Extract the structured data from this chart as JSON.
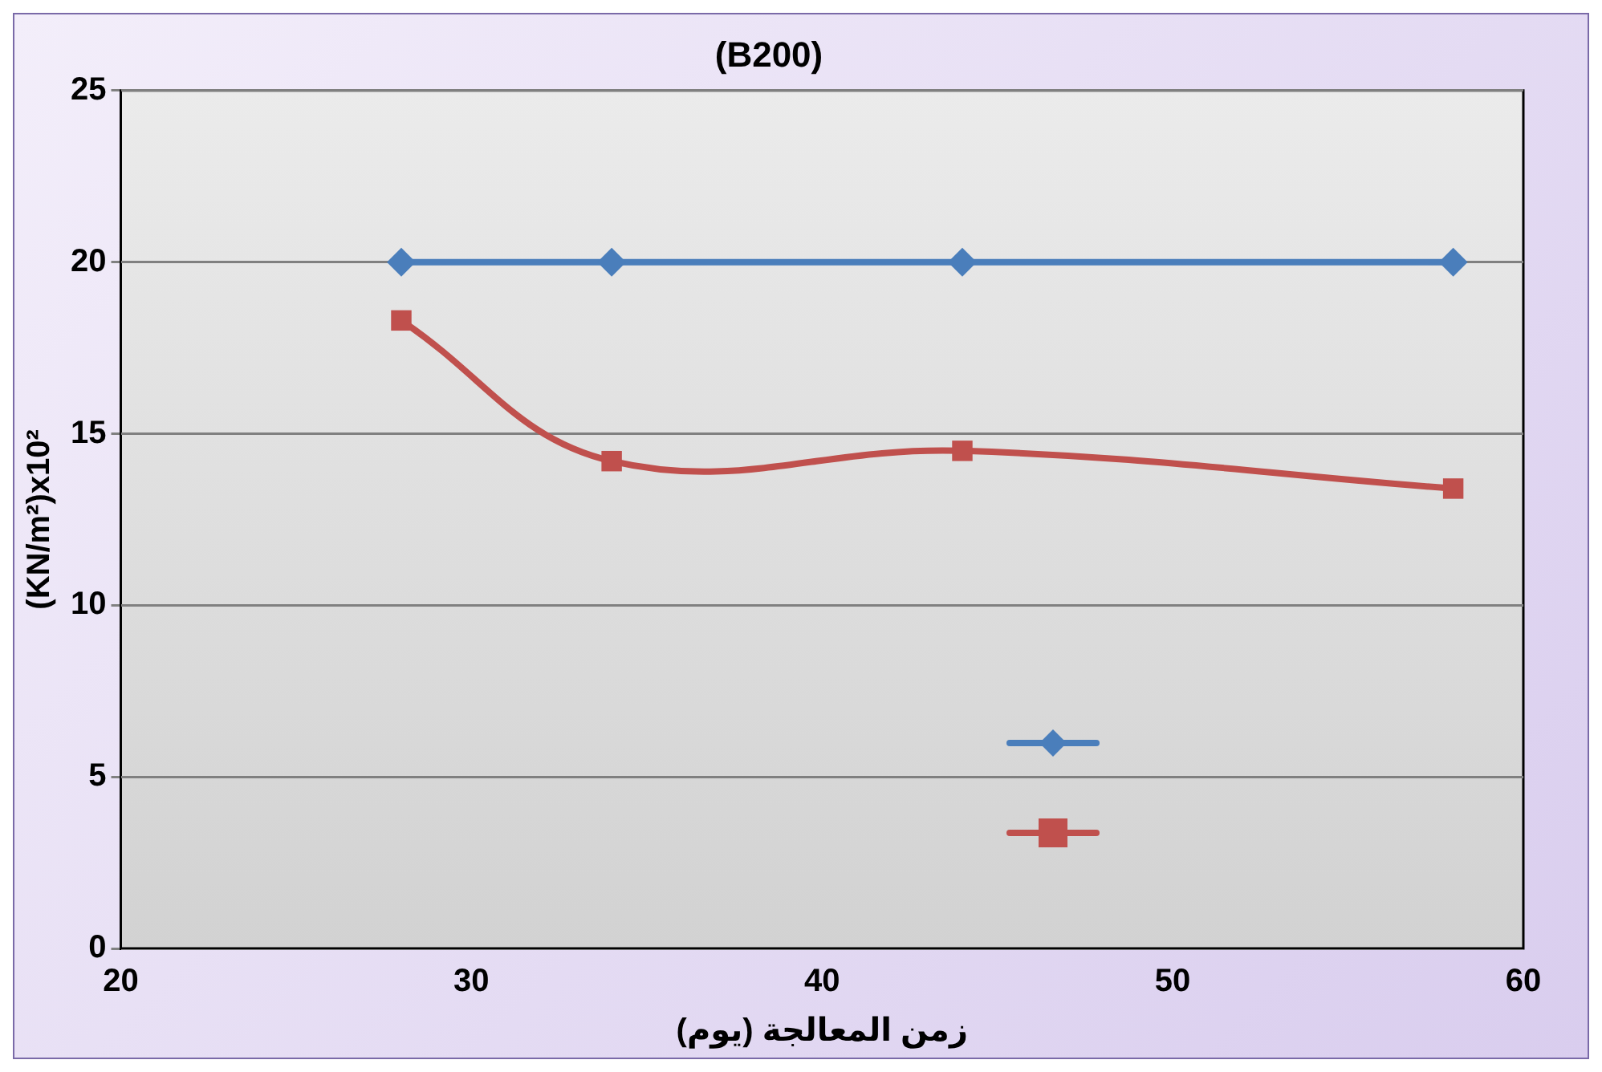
{
  "chart_data": {
    "type": "line",
    "title": "(B200)",
    "xlabel": "زمن المعالجة (يوم)",
    "ylabel": "(KN/m²)x10²",
    "x": [
      28,
      34,
      44,
      58
    ],
    "series": [
      {
        "color": "#4a7ebb",
        "marker": "diamond",
        "values": [
          20,
          20,
          20,
          20
        ]
      },
      {
        "color": "#c0504d",
        "marker": "square",
        "values": [
          18.3,
          14.2,
          14.5,
          13.4
        ]
      }
    ],
    "xlim": [
      20,
      60
    ],
    "xticks": [
      20,
      30,
      40,
      50,
      60
    ],
    "ylim": [
      0,
      25
    ],
    "yticks": [
      0,
      5,
      10,
      15,
      20,
      25
    ],
    "grid": "y"
  }
}
